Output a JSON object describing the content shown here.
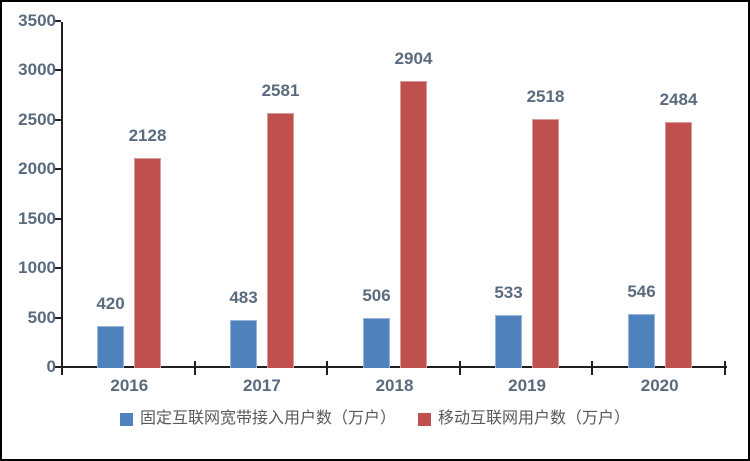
{
  "chart_data": {
    "type": "bar",
    "title": "",
    "xlabel": "",
    "ylabel": "",
    "categories": [
      "2016",
      "2017",
      "2018",
      "2019",
      "2020"
    ],
    "series": [
      {
        "name": "固定互联网宽带接入用户数（万户）",
        "values": [
          420,
          483,
          506,
          533,
          546
        ],
        "color": "#4F81BD",
        "border_color": "#9ab5d9"
      },
      {
        "name": "移动互联网用户数（万户）",
        "values": [
          2128,
          2581,
          2904,
          2518,
          2484
        ],
        "color": "#C0504D",
        "border_color": "#d49d9b"
      }
    ],
    "ylim": [
      0,
      3500
    ],
    "yticks": [
      0,
      500,
      1000,
      1500,
      2000,
      2500,
      3000,
      3500
    ],
    "grid": false,
    "legend_position": "bottom",
    "data_labels": true
  },
  "style": {
    "axis_color": "#1f1f1f",
    "tick_label_color": "#5b6b7e",
    "legend_text_color": "#595959",
    "background": "#ffffff",
    "frame_border_color": "#000000"
  }
}
